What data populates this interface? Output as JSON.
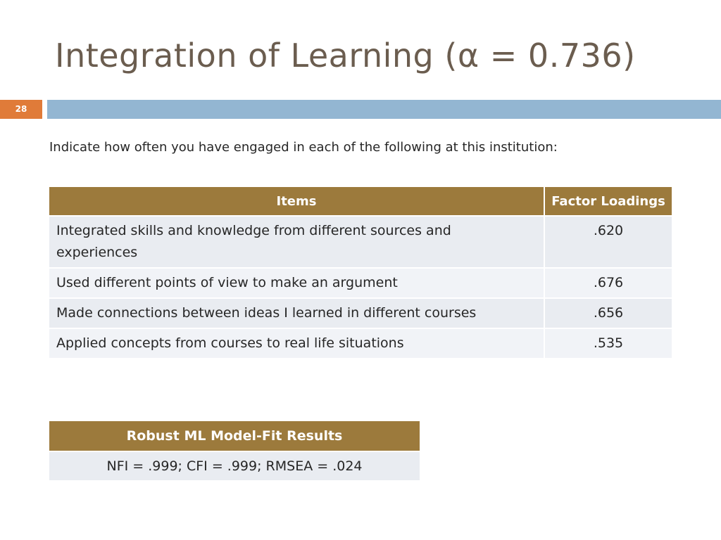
{
  "slide": {
    "title": "Integration of Learning (α = 0.736)",
    "number": "28",
    "intro": "Indicate how often you have engaged in each of the following at this institution:"
  },
  "items_table": {
    "headers": {
      "item": "Items",
      "loading": "Factor Loadings"
    },
    "rows": [
      {
        "item": "Integrated skills and knowledge from different sources and experiences",
        "loading": ".620"
      },
      {
        "item": "Used different points of view to make an argument",
        "loading": ".676"
      },
      {
        "item": "Made connections between ideas I learned in different courses",
        "loading": ".656"
      },
      {
        "item": "Applied concepts from courses to real life situations",
        "loading": ".535"
      }
    ]
  },
  "fit_table": {
    "header": "Robust ML Model-Fit Results",
    "value": "NFI = .999; CFI = .999; RMSEA = .024"
  },
  "colors": {
    "header_bg": "#9c7a3c",
    "cell_bg": "#e9ecf1",
    "slide_number_bg": "#e07b39",
    "accent_bar": "#93b6d2",
    "title_text": "#6b5d4f"
  }
}
